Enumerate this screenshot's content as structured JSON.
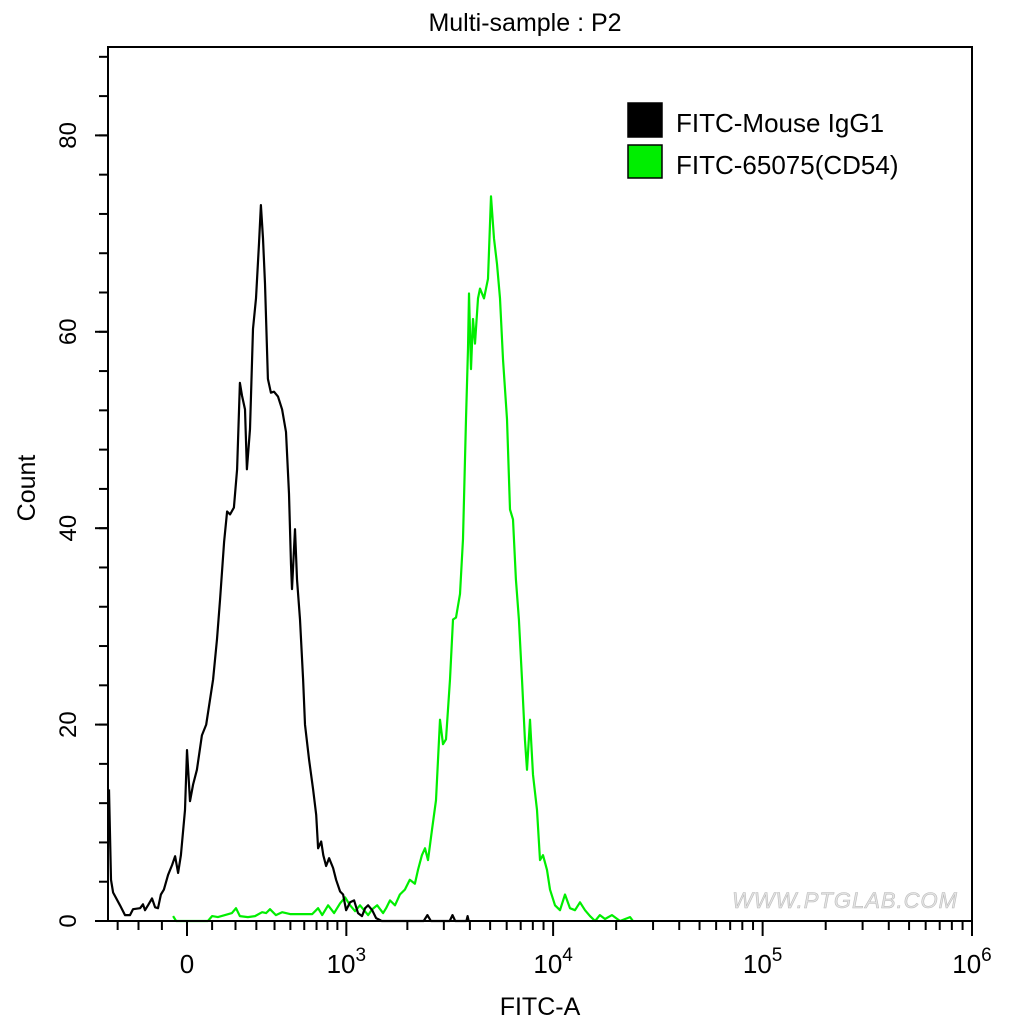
{
  "chart_data": {
    "type": "line",
    "title": "Multi-sample : P2",
    "xlabel": "FITC-A",
    "ylabel": "Count",
    "xscale": "biexponential",
    "xlim": [
      -351,
      1000000
    ],
    "ylim": [
      0,
      89
    ],
    "grid": false,
    "legend_position": "top-right",
    "y_ticks": [
      0,
      20,
      40,
      60,
      80
    ],
    "y_tick_labels": [
      "0",
      "20",
      "40",
      "60",
      "80"
    ],
    "y_minor_step": 4,
    "x_ticks": [
      {
        "value": 0,
        "base": "0",
        "exp": ""
      },
      {
        "value": 1000,
        "base": "10",
        "exp": "3"
      },
      {
        "value": 10000,
        "base": "10",
        "exp": "4"
      },
      {
        "value": 100000,
        "base": "10",
        "exp": "5"
      },
      {
        "value": 1000000,
        "base": "10",
        "exp": "6"
      }
    ],
    "watermark": "WWW.PTGLAB.COM",
    "series": [
      {
        "name": "FITC-Mouse IgG1",
        "color": "#000000",
        "x": [
          -346,
          -335,
          -324,
          -288,
          -263,
          -239,
          -225,
          -193,
          -180,
          -171,
          -158,
          -141,
          -128,
          -116,
          -104,
          -92,
          -75,
          -59,
          -47,
          -35,
          -24,
          -8,
          0,
          12,
          24,
          39,
          59,
          76,
          92,
          104,
          120,
          133,
          150,
          163,
          176,
          193,
          207,
          220,
          230,
          244,
          253,
          268,
          283,
          298,
          314,
          324,
          335,
          346,
          362,
          379,
          397,
          421,
          446,
          471,
          491,
          504,
          511,
          532,
          546,
          568,
          591,
          606,
          638,
          671,
          697,
          714,
          741,
          760,
          787,
          816,
          856,
          887,
          930,
          963,
          997,
          1045,
          1094,
          1145,
          1199,
          1242,
          1285,
          1346,
          1408,
          1500,
          2400,
          2500,
          2600,
          3200,
          3300,
          3400,
          3850,
          3900,
          3950
        ],
        "y": [
          13.4,
          4.2,
          2.9,
          1.6,
          0.6,
          0.6,
          1.2,
          1.3,
          1.7,
          1.1,
          1.6,
          2.3,
          1.4,
          1.3,
          2.7,
          3.2,
          4.7,
          5.7,
          6.6,
          4.9,
          6.7,
          11.3,
          17.4,
          12.2,
          13.9,
          15.4,
          18.9,
          20.0,
          22.6,
          24.6,
          28.7,
          32.8,
          38.6,
          41.7,
          41.4,
          42.1,
          46.0,
          54.8,
          53.5,
          52.1,
          46.0,
          50.1,
          60.3,
          63.4,
          69.0,
          72.9,
          69.5,
          64.9,
          55.2,
          53.8,
          53.9,
          53.4,
          52.1,
          49.8,
          43.5,
          36.3,
          33.8,
          39.9,
          34.8,
          30.7,
          24.6,
          20.0,
          16.4,
          13.4,
          10.8,
          7.4,
          8.1,
          6.7,
          5.6,
          6.4,
          5.4,
          4.2,
          3.0,
          2.7,
          1.1,
          1.9,
          2.1,
          0.8,
          0.5,
          1.3,
          1.6,
          1.1,
          0.3,
          0,
          0,
          0.6,
          0,
          0,
          0.6,
          0,
          0,
          0.5,
          0
        ]
      },
      {
        "name": "FITC-65075(CD54)",
        "color": "#00ee00",
        "x": [
          -55,
          -43,
          83,
          100,
          124,
          154,
          184,
          202,
          220,
          258,
          293,
          330,
          352,
          374,
          408,
          446,
          498,
          568,
          663,
          714,
          750,
          806,
          866,
          930,
          986,
          1045,
          1107,
          1172,
          1285,
          1346,
          1425,
          1524,
          1576,
          1647,
          1741,
          1840,
          1945,
          2056,
          2175,
          2252,
          2353,
          2434,
          2517,
          2631,
          2750,
          2875,
          2971,
          3072,
          3211,
          3319,
          3430,
          3587,
          3709,
          3831,
          3917,
          3959,
          4049,
          4138,
          4232,
          4374,
          4472,
          4675,
          4886,
          5048,
          5220,
          5395,
          5574,
          5764,
          6018,
          6222,
          6430,
          6644,
          6866,
          7099,
          7335,
          7500,
          7751,
          8012,
          8374,
          8656,
          8946,
          9347,
          9662,
          10207,
          10783,
          11395,
          12040,
          12720,
          13439,
          14195,
          15000,
          15859,
          16719,
          17685,
          19099,
          20854,
          23270,
          24058
        ],
        "y": [
          0.5,
          0,
          0,
          0.5,
          0.4,
          0.6,
          0.8,
          1.3,
          0.5,
          0.4,
          0.5,
          0.9,
          0.8,
          1.2,
          0.6,
          0.9,
          0.7,
          0.7,
          0.7,
          1.3,
          0.6,
          1.6,
          0.8,
          1.8,
          2.4,
          1.6,
          1.0,
          1.6,
          0.6,
          1.2,
          1.6,
          0.8,
          1.3,
          2.1,
          1.6,
          2.7,
          3.2,
          4.2,
          3.8,
          5.2,
          6.7,
          7.4,
          6.2,
          9.3,
          12.3,
          20.5,
          18.0,
          18.5,
          24.6,
          30.7,
          30.9,
          33.3,
          38.9,
          51.1,
          58.3,
          63.9,
          56.2,
          61.3,
          58.8,
          63.4,
          64.4,
          63.4,
          65.4,
          73.8,
          69.5,
          66.9,
          63.4,
          57.2,
          51.1,
          41.9,
          40.9,
          34.8,
          30.7,
          24.6,
          18.5,
          15.4,
          20.5,
          14.9,
          11.3,
          6.2,
          6.7,
          5.2,
          3.2,
          1.6,
          1.1,
          2.7,
          1.3,
          1.1,
          1.9,
          1.1,
          0.5,
          0,
          0.6,
          0.2,
          0.6,
          0,
          0.4,
          0
        ]
      }
    ]
  }
}
